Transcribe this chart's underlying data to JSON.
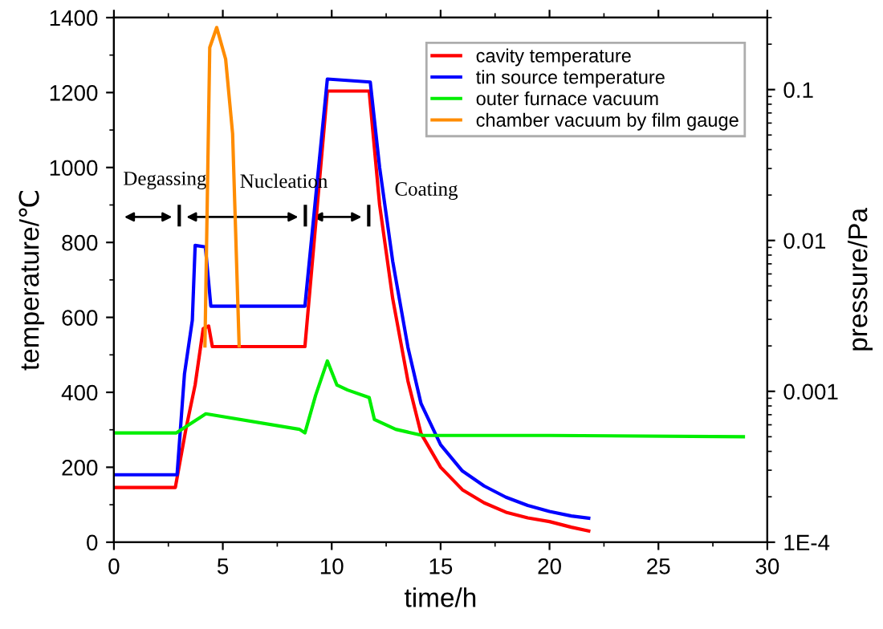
{
  "chart_data": {
    "type": "line",
    "xlabel": "time/h",
    "ylabel": "temperature/℃",
    "y2label": "pressure/Pa",
    "xlim": [
      0,
      30
    ],
    "xticks": [
      0,
      5,
      10,
      15,
      20,
      25,
      30
    ],
    "ylim": [
      0,
      1400
    ],
    "yticks": [
      0,
      200,
      400,
      600,
      800,
      1000,
      1200,
      1400
    ],
    "y2lim": [
      0.0001,
      0.3
    ],
    "y2ticks": [
      {
        "value": 0.0001,
        "label": "1E-4"
      },
      0.001,
      0.01,
      0.1
    ],
    "log": "y2",
    "legend": "top right",
    "grid": false,
    "series": [
      {
        "name": "cavity temperature",
        "color": "#ff0000",
        "x": [
          0,
          2.82,
          3.3,
          3.73,
          4.1,
          4.35,
          4.52,
          8.77,
          9.8,
          11.72,
          12.2,
          12.8,
          13.5,
          14.1,
          15,
          16,
          17,
          18,
          19,
          20,
          21,
          21.8
        ],
        "values": [
          146,
          146,
          300,
          420,
          570,
          577,
          522,
          522,
          1204,
          1204,
          900,
          650,
          430,
          290,
          200,
          140,
          105,
          80,
          65,
          55,
          40,
          30
        ]
      },
      {
        "name": "tin source temperature",
        "color": "#0000ff",
        "x": [
          0,
          2.9,
          3.24,
          3.6,
          3.73,
          4.2,
          4.45,
          8.77,
          9.8,
          11.77,
          12.2,
          12.8,
          13.5,
          14.1,
          15,
          16,
          17,
          18,
          19,
          20,
          21,
          21.8
        ],
        "values": [
          180,
          180,
          449,
          592,
          792,
          788,
          630,
          630,
          1236,
          1228,
          1000,
          750,
          520,
          370,
          260,
          190,
          150,
          120,
          98,
          82,
          70,
          64
        ]
      },
      {
        "name": "outer furnace vacuum",
        "color": "#00ee00",
        "axis": "y2",
        "x": [
          0,
          2.87,
          4.22,
          8.52,
          8.77,
          9.26,
          9.8,
          10.24,
          10.73,
          11.72,
          11.96,
          12.94,
          14.17,
          20,
          28.9
        ],
        "values": [
          0.00053,
          0.00053,
          0.00071,
          0.00056,
          0.00053,
          0.00094,
          0.00159,
          0.0011,
          0.00102,
          0.00091,
          0.00065,
          0.00056,
          0.00051,
          0.00051,
          0.0005
        ]
      },
      {
        "name": "chamber vacuum by film gauge",
        "color": "#ff8c00",
        "axis": "y2",
        "x": [
          4.18,
          4.4,
          4.72,
          5.13,
          5.45,
          5.75
        ],
        "values": [
          0.002,
          0.19,
          0.258,
          0.159,
          0.051,
          0.002
        ]
      }
    ],
    "annotations": [
      "Degassing",
      "Nucleation",
      "Coating"
    ]
  }
}
